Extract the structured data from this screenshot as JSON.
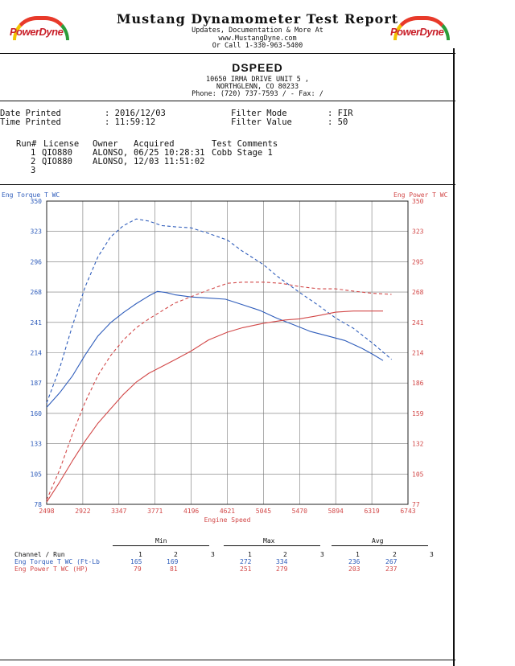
{
  "header": {
    "brand": "PowerDyne",
    "title": "Mustang Dynamometer Test Report",
    "sub1": "Updates, Documentation & More At",
    "sub2": "www.MustangDyne.com",
    "sub3": "Or Call 1-330-963-5400"
  },
  "shop": {
    "name": "DSPEED",
    "address1": "10650 IRMA DRIVE UNIT 5 ,",
    "address2": "NORTHGLENN, CO  80233",
    "phone": "Phone: (720) 737-7593 /  - Fax:  /"
  },
  "print_info": {
    "date_label": "Date Printed",
    "date_value": ": 2016/12/03",
    "time_label": "Time Printed",
    "time_value": ": 11:59:12",
    "filter_mode_label": "Filter Mode",
    "filter_mode_value": ": FIR",
    "filter_value_label": "Filter Value",
    "filter_value_value": ": 50"
  },
  "runs": {
    "headers": [
      "Run#",
      "License",
      "Owner",
      "Acquired",
      "Test Comments"
    ],
    "rows": [
      {
        "run": "1",
        "license": "QIO880",
        "owner": "ALONSO,",
        "acquired": "06/25 10:28:31",
        "comments": "Cobb Stage 1"
      },
      {
        "run": "2",
        "license": "QIO880",
        "owner": "ALONSO,",
        "acquired": "12/03 11:51:02",
        "comments": ""
      },
      {
        "run": "3",
        "license": "",
        "owner": "",
        "acquired": "",
        "comments": ""
      }
    ]
  },
  "chart_data": {
    "type": "line",
    "xlabel": "Engine Speed",
    "ylabel_left": "Eng Torque T WC",
    "ylabel_right": "Eng Power T WC",
    "xlim": [
      2498,
      6743
    ],
    "ylim_left": [
      78,
      350
    ],
    "ylim_right": [
      77,
      350
    ],
    "x_ticks": [
      "2498",
      "2922",
      "3347",
      "3771",
      "4196",
      "4621",
      "5045",
      "5470",
      "5894",
      "6319",
      "6743"
    ],
    "y_ticks_left": [
      "350",
      "323",
      "296",
      "268",
      "241",
      "214",
      "187",
      "160",
      "133",
      "105",
      "78"
    ],
    "y_ticks_right": [
      "350",
      "323",
      "295",
      "268",
      "241",
      "214",
      "186",
      "159",
      "132",
      "105",
      "77"
    ],
    "grid": true,
    "colors": {
      "torque": "#2f5dbb",
      "power": "#d24848"
    },
    "series": [
      {
        "quantity": "torque",
        "axis": "left",
        "style": "solid",
        "x": [
          2498,
          2650,
          2800,
          2950,
          3100,
          3250,
          3400,
          3550,
          3700,
          3800,
          3900,
          4000,
          4196,
          4400,
          4600,
          4800,
          5000,
          5200,
          5400,
          5600,
          5800,
          6000,
          6200,
          6319,
          6450
        ],
        "y": [
          165,
          178,
          193,
          212,
          229,
          241,
          250,
          258,
          265,
          269,
          268,
          266,
          264,
          263,
          262,
          257,
          252,
          245,
          239,
          233,
          229,
          225,
          218,
          213,
          207
        ]
      },
      {
        "quantity": "torque",
        "axis": "left",
        "style": "dashed",
        "x": [
          2498,
          2650,
          2800,
          2950,
          3100,
          3250,
          3400,
          3550,
          3700,
          3850,
          4000,
          4196,
          4400,
          4621,
          4800,
          5045,
          5200,
          5470,
          5700,
          5894,
          6100,
          6319,
          6550
        ],
        "y": [
          169,
          200,
          238,
          273,
          300,
          318,
          328,
          334,
          332,
          328,
          327,
          326,
          321,
          315,
          305,
          293,
          283,
          268,
          256,
          245,
          236,
          223,
          208
        ]
      },
      {
        "quantity": "power",
        "axis": "right",
        "style": "solid",
        "x": [
          2498,
          2650,
          2800,
          2950,
          3100,
          3250,
          3400,
          3550,
          3700,
          3850,
          4000,
          4196,
          4400,
          4621,
          4800,
          5045,
          5300,
          5470,
          5700,
          5894,
          6100,
          6319,
          6450
        ],
        "y": [
          79,
          97,
          116,
          134,
          150,
          163,
          176,
          187,
          195,
          201,
          207,
          215,
          225,
          232,
          236,
          240,
          243,
          244,
          247,
          250,
          251,
          251,
          251
        ]
      },
      {
        "quantity": "power",
        "axis": "right",
        "style": "dashed",
        "x": [
          2498,
          2650,
          2800,
          2950,
          3100,
          3250,
          3400,
          3550,
          3700,
          3850,
          4000,
          4196,
          4400,
          4621,
          4800,
          5045,
          5250,
          5470,
          5700,
          5894,
          6100,
          6319,
          6550
        ],
        "y": [
          81,
          108,
          140,
          169,
          193,
          211,
          225,
          236,
          244,
          251,
          258,
          264,
          270,
          276,
          277,
          277,
          276,
          273,
          271,
          271,
          269,
          267,
          266
        ]
      }
    ]
  },
  "summary": {
    "min_label": "Min",
    "max_label": "Max",
    "avg_label": "Avg",
    "channel_run_label": "Channel / Run",
    "run_cols": [
      "1",
      "2",
      "3"
    ],
    "torque_label": "Eng Torque T WC (Ft-Lb",
    "power_label": "Eng Power T WC (HP)",
    "torque": {
      "min": [
        "165",
        "169"
      ],
      "max": [
        "272",
        "334"
      ],
      "avg": [
        "236",
        "267"
      ]
    },
    "power": {
      "min": [
        "79",
        "81"
      ],
      "max": [
        "251",
        "279"
      ],
      "avg": [
        "203",
        "237"
      ]
    }
  }
}
